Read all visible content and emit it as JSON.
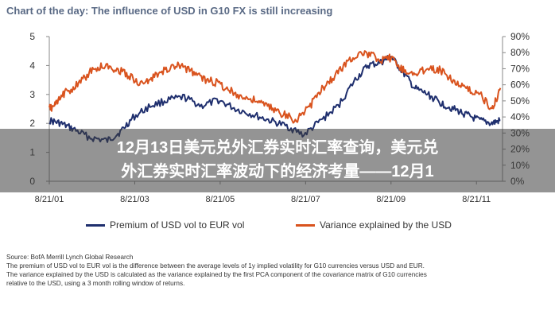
{
  "chart_title": "Chart of the day: The influence of USD in G10 FX is still increasing",
  "banner": {
    "line1": "12月13日美元兑外汇券实时汇率查询，美元兑",
    "line2": "外汇券实时汇率波动下的经济考量——12月1"
  },
  "source": "Source: BofA Merrill Lynch Global Research",
  "notes": [
    "The premium of USD vol to EUR vol is the difference between the average levels of 1y implied volatility for G10 currencies versus USD and EUR.",
    "The variance explained by the USD is calculated as the variance explained by the first PCA component of the covariance matrix of G10 currencies",
    "relative to the USD, using a 3 month rolling window of returns."
  ],
  "colors": {
    "navy": "#1f2f6e",
    "orange": "#d9531e",
    "title": "#5a6a85"
  },
  "chart_data": {
    "type": "line",
    "title": "Chart of the day: The influence of USD in G10 FX is still increasing",
    "x_tick_labels": [
      "8/21/01",
      "8/21/03",
      "8/21/05",
      "8/21/07",
      "8/21/09",
      "8/21/11"
    ],
    "x_range": [
      "8/21/01",
      "2012"
    ],
    "y_left": {
      "range": [
        0,
        5
      ],
      "ticks": [
        "0",
        "1",
        "2",
        "3",
        "4",
        "5"
      ]
    },
    "y_right": {
      "range": [
        0,
        90
      ],
      "ticks": [
        "0%",
        "10%",
        "20%",
        "30%",
        "40%",
        "50%",
        "60%",
        "70%",
        "80%",
        "90%"
      ]
    },
    "grid": false,
    "legend_position": "bottom",
    "series": [
      {
        "name": "Premium of USD vol to EUR vol",
        "axis": "left",
        "color": "#1f2f6e",
        "x": [
          2001.64,
          2001.9,
          2002.2,
          2002.6,
          2003.0,
          2003.3,
          2003.6,
          2004.0,
          2004.4,
          2004.8,
          2005.2,
          2005.6,
          2006.0,
          2006.4,
          2006.8,
          2007.2,
          2007.6,
          2008.0,
          2008.4,
          2008.8,
          2009.1,
          2009.4,
          2009.64,
          2009.9,
          2010.2,
          2010.5,
          2010.8,
          2011.1,
          2011.4,
          2011.7,
          2012.0,
          2012.2
        ],
        "values": [
          2.1,
          2.0,
          1.8,
          1.5,
          1.4,
          1.7,
          2.2,
          2.6,
          2.8,
          2.9,
          2.6,
          2.8,
          2.5,
          2.3,
          2.1,
          1.9,
          1.6,
          2.1,
          2.6,
          3.5,
          4.0,
          4.1,
          4.3,
          3.8,
          3.2,
          3.0,
          2.7,
          2.5,
          2.3,
          2.1,
          2.0,
          2.1
        ]
      },
      {
        "name": "Variance explained by the USD",
        "axis": "right",
        "color": "#d9531e",
        "x": [
          2001.64,
          2001.8,
          2002.0,
          2002.3,
          2002.6,
          2002.9,
          2003.2,
          2003.5,
          2003.8,
          2004.1,
          2004.4,
          2004.7,
          2005.0,
          2005.3,
          2005.6,
          2005.9,
          2006.2,
          2006.5,
          2006.8,
          2007.1,
          2007.4,
          2007.7,
          2008.0,
          2008.3,
          2008.6,
          2008.9,
          2009.2,
          2009.5,
          2009.64,
          2009.9,
          2010.2,
          2010.5,
          2010.8,
          2011.1,
          2011.4,
          2011.7,
          2012.0,
          2012.2
        ],
        "values": [
          45,
          48,
          55,
          60,
          68,
          72,
          70,
          66,
          60,
          65,
          70,
          72,
          68,
          63,
          61,
          56,
          52,
          50,
          46,
          42,
          38,
          45,
          57,
          65,
          74,
          80,
          78,
          75,
          77,
          70,
          66,
          71,
          69,
          63,
          57,
          55,
          44,
          58
        ]
      }
    ]
  }
}
